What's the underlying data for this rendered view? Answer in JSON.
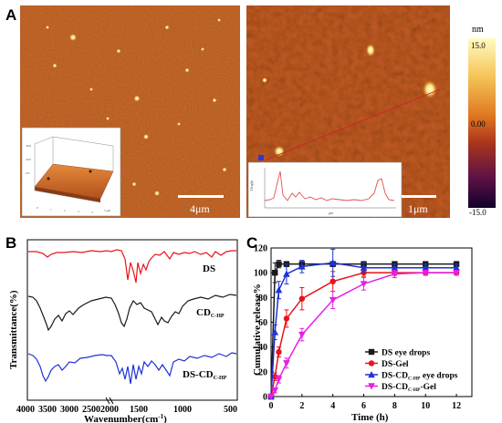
{
  "panels": {
    "A": "A",
    "B": "B",
    "C": "C"
  },
  "afm": {
    "left_scalebar": "4μm",
    "right_scalebar": "1μm",
    "colorbar": {
      "unit": "nm",
      "ticks": [
        "15.0",
        "0.00",
        "-15.0"
      ],
      "colors": [
        "#fffbc2",
        "#f5c65a",
        "#e07a22",
        "#a9341c",
        "#5e1246",
        "#12002a"
      ]
    },
    "profile_inset": {
      "ylabel": "Height",
      "xlabel": "μm"
    }
  },
  "ftir": {
    "ylabel": "Transmittance(%)",
    "xlabel": "Wavenumber(cm",
    "xlabel_sup": "-1",
    "xlabel_close": ")",
    "xticks_left": [
      "4000",
      "3500",
      "3000",
      "2500",
      "2000"
    ],
    "xticks_right": [
      "1500",
      "1000",
      "500"
    ],
    "traces": [
      {
        "label": "DS",
        "color": "#e8141a"
      },
      {
        "label": "CD",
        "sub": "C-HP",
        "color": "#1a1a1a"
      },
      {
        "label": "DS-CD",
        "sub": "C-HP",
        "color": "#1f32d6"
      }
    ]
  },
  "chart_data": {
    "type": "line",
    "xlabel": "Time (h)",
    "ylabel": "Cumulative release%",
    "xlim": [
      0,
      13
    ],
    "ylim": [
      0,
      120
    ],
    "xticks": [
      0,
      2,
      4,
      6,
      8,
      10,
      12
    ],
    "yticks": [
      0,
      20,
      40,
      60,
      80,
      100,
      120
    ],
    "x": [
      0,
      0.25,
      0.5,
      1,
      2,
      4,
      6,
      8,
      10,
      12
    ],
    "series": [
      {
        "name": "DS eye drops",
        "color": "#1a1a1a",
        "marker": "square",
        "values": [
          0,
          100,
          107,
          107,
          107,
          107,
          107,
          107,
          107,
          107
        ],
        "err": [
          0,
          8,
          3,
          2,
          2,
          2,
          2,
          2,
          2,
          2
        ]
      },
      {
        "name": "DS-Gel",
        "color": "#e8141a",
        "marker": "circle",
        "values": [
          0,
          16,
          36,
          63,
          79,
          93,
          100,
          100,
          100,
          100
        ],
        "err": [
          0,
          3,
          4,
          7,
          9,
          8,
          3,
          2,
          2,
          2
        ]
      },
      {
        "name": "DS-CD",
        "sub": "C-HP",
        "suffix": " eye drops",
        "color": "#1f32d6",
        "marker": "triangle",
        "values": [
          0,
          52,
          86,
          99,
          105,
          108,
          104,
          104,
          104,
          104
        ],
        "err": [
          0,
          6,
          7,
          8,
          5,
          11,
          4,
          3,
          3,
          3
        ]
      },
      {
        "name": "DS-CD",
        "sub": "C-HP",
        "suffix": "-Gel",
        "color": "#e61ee6",
        "marker": "down-triangle",
        "values": [
          0,
          5,
          14,
          27,
          50,
          78,
          91,
          99,
          100,
          100
        ],
        "err": [
          0,
          2,
          3,
          4,
          5,
          7,
          5,
          3,
          2,
          2
        ]
      }
    ],
    "legend": "lower-right"
  }
}
